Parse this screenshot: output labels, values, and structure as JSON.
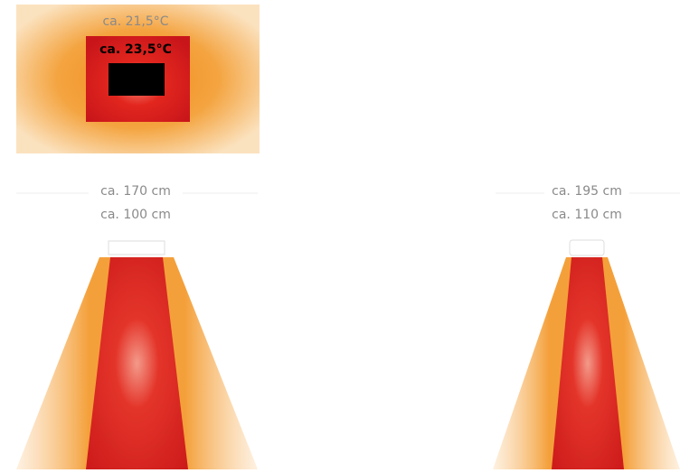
{
  "heat_zone": {
    "outer_label": "ca. 21,5°C",
    "inner_label": "ca. 23,5°C"
  },
  "heaters": [
    {
      "top_label": "ca. 170 cm",
      "bottom_label": "ca. 100 cm"
    },
    {
      "top_label": "ca. 195 cm",
      "bottom_label": "ca. 110 cm"
    }
  ]
}
